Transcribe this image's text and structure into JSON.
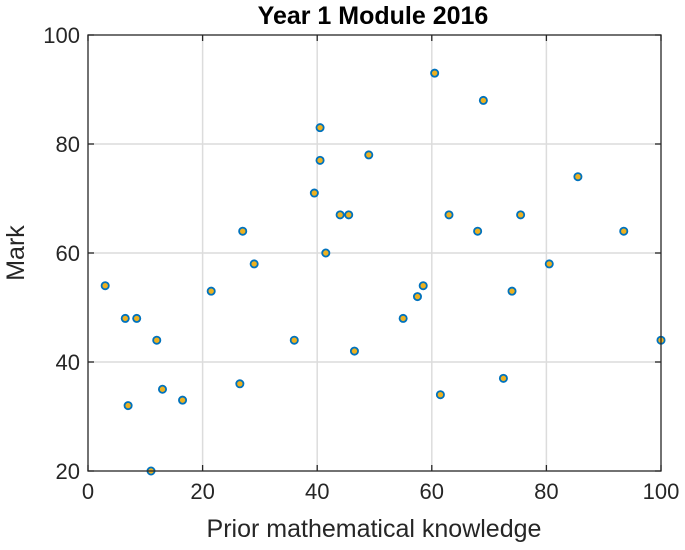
{
  "chart_data": {
    "type": "scatter",
    "title": "Year 1 Module 2016",
    "xlabel": "Prior mathematical knowledge",
    "ylabel": "Mark",
    "xlim": [
      0,
      100
    ],
    "ylim": [
      20,
      100
    ],
    "xticks": [
      0,
      20,
      40,
      60,
      80,
      100
    ],
    "yticks": [
      20,
      40,
      60,
      80,
      100
    ],
    "xtick_labels": [
      "0",
      "20",
      "40",
      "60",
      "80",
      "100"
    ],
    "ytick_labels": [
      "20",
      "40",
      "60",
      "80",
      "100"
    ],
    "grid": true,
    "legend": "none",
    "marker_fill": "#EDB120",
    "marker_edge": "#0072BD",
    "points": [
      {
        "x": 3,
        "y": 54
      },
      {
        "x": 6.5,
        "y": 48
      },
      {
        "x": 7,
        "y": 32
      },
      {
        "x": 8.5,
        "y": 48
      },
      {
        "x": 11,
        "y": 20
      },
      {
        "x": 12,
        "y": 44
      },
      {
        "x": 13,
        "y": 35
      },
      {
        "x": 16.5,
        "y": 33
      },
      {
        "x": 21.5,
        "y": 53
      },
      {
        "x": 26.5,
        "y": 36
      },
      {
        "x": 27,
        "y": 64
      },
      {
        "x": 29,
        "y": 58
      },
      {
        "x": 36,
        "y": 44
      },
      {
        "x": 39.5,
        "y": 71
      },
      {
        "x": 40.5,
        "y": 83
      },
      {
        "x": 40.5,
        "y": 77
      },
      {
        "x": 41.5,
        "y": 60
      },
      {
        "x": 44,
        "y": 67
      },
      {
        "x": 45.5,
        "y": 67
      },
      {
        "x": 46.5,
        "y": 42
      },
      {
        "x": 49,
        "y": 78
      },
      {
        "x": 55,
        "y": 48
      },
      {
        "x": 57.5,
        "y": 52
      },
      {
        "x": 58.5,
        "y": 54
      },
      {
        "x": 60.5,
        "y": 93
      },
      {
        "x": 61.5,
        "y": 34
      },
      {
        "x": 63,
        "y": 67
      },
      {
        "x": 68,
        "y": 64
      },
      {
        "x": 69,
        "y": 88
      },
      {
        "x": 72.5,
        "y": 37
      },
      {
        "x": 74,
        "y": 53
      },
      {
        "x": 75.5,
        "y": 67
      },
      {
        "x": 80.5,
        "y": 58
      },
      {
        "x": 85.5,
        "y": 74
      },
      {
        "x": 93.5,
        "y": 64
      },
      {
        "x": 100,
        "y": 44
      }
    ]
  }
}
